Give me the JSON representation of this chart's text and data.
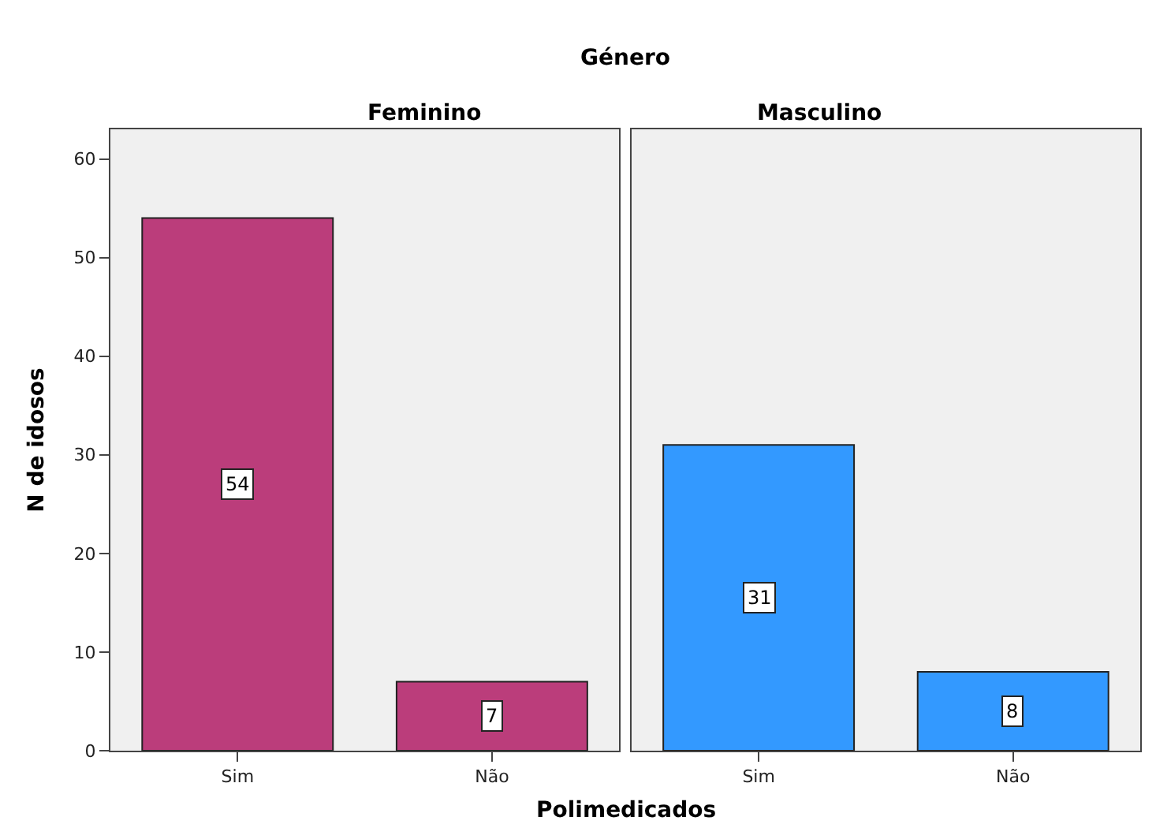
{
  "chart_data": [
    {
      "type": "bar",
      "title": "Feminino",
      "annotations": [
        "Género"
      ],
      "xlabel": "Polimedicados",
      "ylabel": "N de idosos",
      "categories": [
        "Sim",
        "Não"
      ],
      "values": [
        54,
        7
      ],
      "color": "#bb3d7b",
      "ylim": [
        0,
        63
      ],
      "yticks": [
        0,
        10,
        20,
        30,
        40,
        50,
        60
      ],
      "data_labels": true,
      "grid": false
    },
    {
      "type": "bar",
      "title": "Masculino",
      "categories": [
        "Sim",
        "Não"
      ],
      "values": [
        31,
        8
      ],
      "color": "#3399ff",
      "ylim": [
        0,
        63
      ],
      "yticks": [
        0,
        10,
        20,
        30,
        40,
        50,
        60
      ],
      "data_labels": true,
      "grid": false,
      "tick_labels": "x"
    }
  ]
}
